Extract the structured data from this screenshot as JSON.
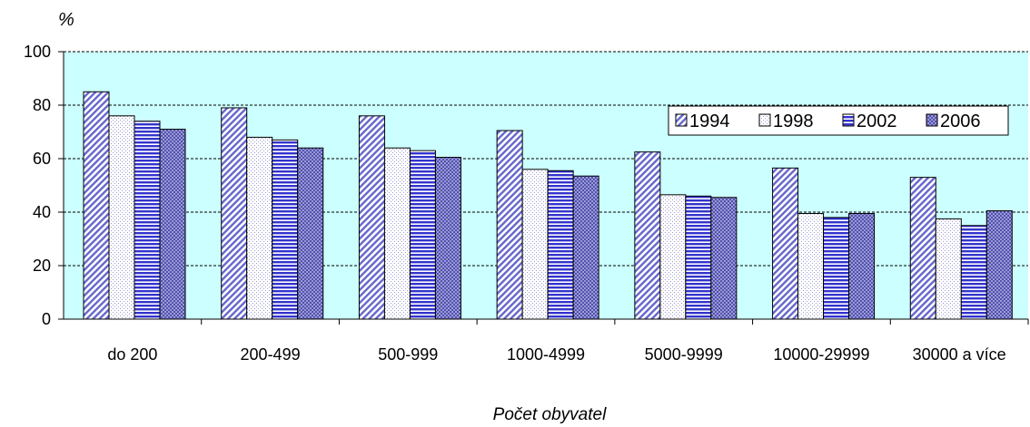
{
  "chart_data": {
    "type": "bar",
    "ylabel": "%",
    "xlabel": "Počet obyvatel",
    "ylim": [
      0,
      100
    ],
    "yticks": [
      0,
      20,
      40,
      60,
      80,
      100
    ],
    "grid": true,
    "legend_position": "top-right",
    "categories": [
      "do 200",
      "200-499",
      "500-999",
      "1000-4999",
      "5000-9999",
      "10000-29999",
      "30000 a více"
    ],
    "series": [
      {
        "name": "1994",
        "values": [
          85,
          79,
          76,
          70.5,
          62.5,
          56.5,
          53
        ],
        "color": "#9999ff",
        "pattern": "diagonal-stripes"
      },
      {
        "name": "1998",
        "values": [
          76,
          68,
          64,
          56,
          46.5,
          39.5,
          37.5
        ],
        "color": "#ffffff",
        "pattern": "dots"
      },
      {
        "name": "2002",
        "values": [
          74,
          67,
          63,
          55.5,
          46,
          38,
          35
        ],
        "color": "#3333cc",
        "pattern": "horizontal-stripes"
      },
      {
        "name": "2006",
        "values": [
          71,
          64,
          60.5,
          53.5,
          45.5,
          39.5,
          40.5
        ],
        "color": "#6666cc",
        "pattern": "crosshatch"
      }
    ],
    "plot_background": "#ccffff"
  }
}
